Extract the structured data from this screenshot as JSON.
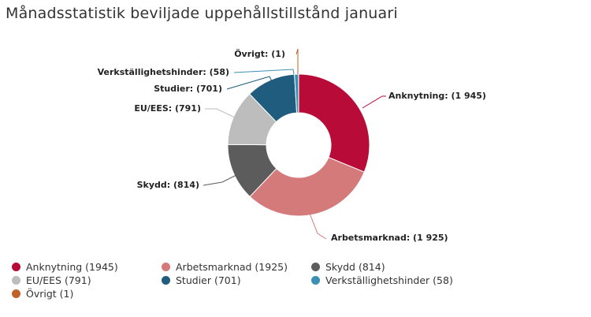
{
  "chart_data": {
    "type": "pie",
    "variant": "donut",
    "title": "Månadsstatistik beviljade uppehållstillstånd januari",
    "slices": [
      {
        "name": "Anknytning",
        "value": 1945,
        "label": "Anknytning: (1 945)",
        "legend": "Anknytning (1945)",
        "color": "#b90b37"
      },
      {
        "name": "Arbetsmarknad",
        "value": 1925,
        "label": "Arbetsmarknad: (1 925)",
        "legend": "Arbetsmarknad (1925)",
        "color": "#d47a7b"
      },
      {
        "name": "Skydd",
        "value": 814,
        "label": "Skydd: (814)",
        "legend": "Skydd (814)",
        "color": "#5c5c5c"
      },
      {
        "name": "EU/EES",
        "value": 791,
        "label": "EU/EES: (791)",
        "legend": "EU/EES (791)",
        "color": "#bdbdbd"
      },
      {
        "name": "Studier",
        "value": 701,
        "label": "Studier: (701)",
        "legend": "Studier (701)",
        "color": "#1f5c7e"
      },
      {
        "name": "Verkställighetshinder",
        "value": 58,
        "label": "Verkställighetshinder: (58)",
        "legend": "Verkställighetshinder (58)",
        "color": "#3a8fb4"
      },
      {
        "name": "Övrigt",
        "value": 1,
        "label": "Övrigt: (1)",
        "legend": "Övrigt (1)",
        "color": "#c0622a"
      }
    ],
    "legend_position": "bottom"
  }
}
